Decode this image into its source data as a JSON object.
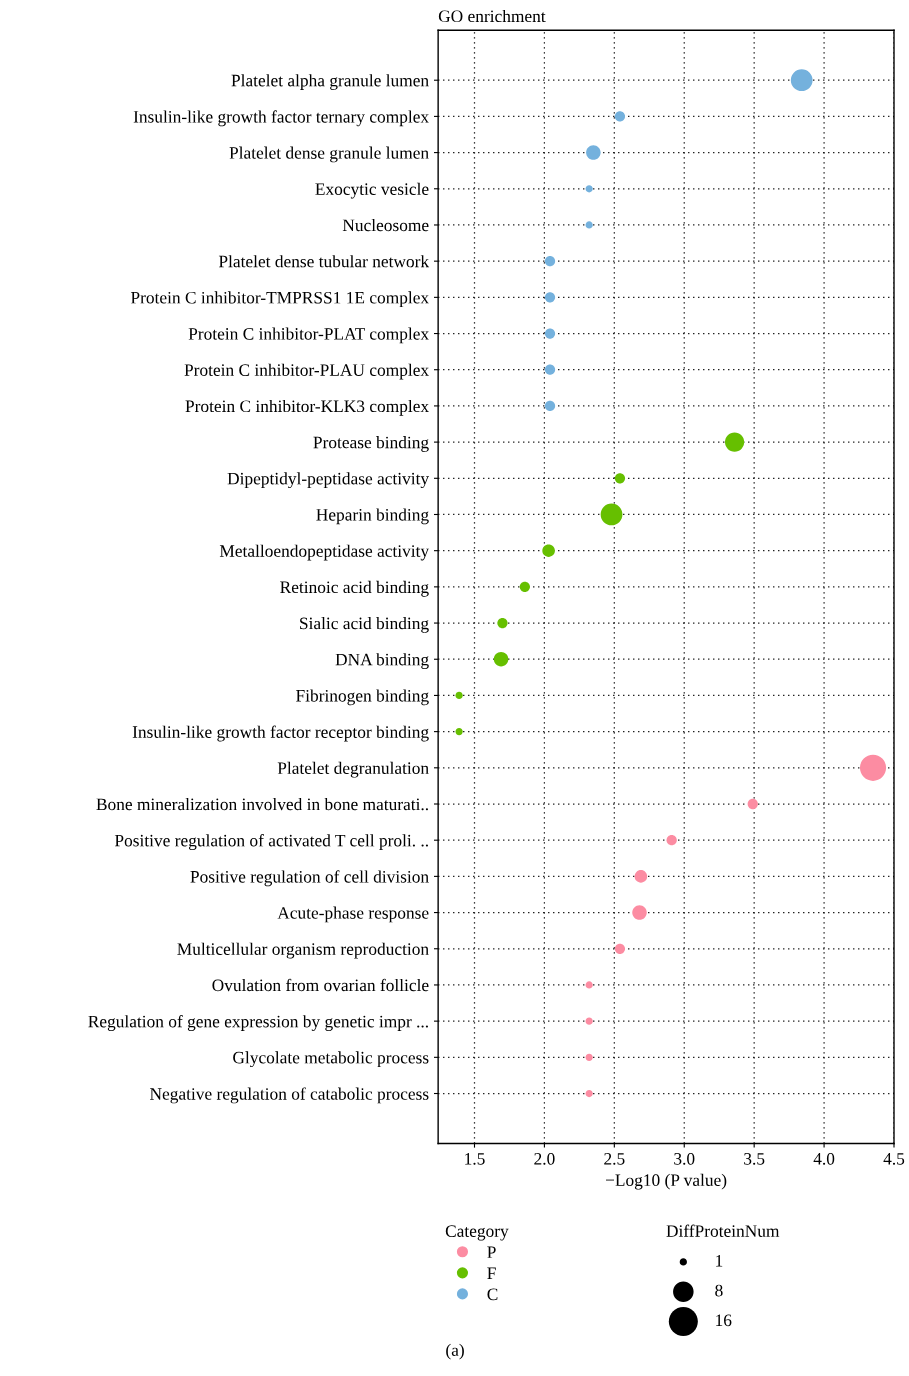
{
  "chart_data": {
    "type": "bubble",
    "title": "GO enrichment",
    "xlabel": "−Log10 (P value)",
    "orientation": "horizontal",
    "categories": [
      "Platelet alpha granule lumen",
      "Insulin-like growth factor ternary complex",
      "Platelet dense granule lumen",
      "Exocytic vesicle",
      "Nucleosome",
      "Platelet dense tubular network",
      "Protein C inhibitor-TMPRSS1 1E complex",
      "Protein C inhibitor-PLAT complex",
      "Protein C inhibitor-PLAU complex",
      "Protein C inhibitor-KLK3 complex",
      "Protease binding",
      "Dipeptidyl-peptidase activity",
      "Heparin binding",
      "Metalloendopeptidase activity",
      "Retinoic acid binding",
      "Sialic acid binding",
      "DNA binding",
      "Fibrinogen binding",
      "Insulin-like growth factor receptor binding",
      "Platelet degranulation",
      "Bone mineralization involved in bone maturati..",
      "Positive regulation of activated T cell proli. ..",
      "Positive regulation of cell division",
      "Acute-phase response",
      "Multicellular organism reproduction",
      "Ovulation from ovarian follicle",
      "Regulation of gene expression by genetic impr ...",
      "Glycolate metabolic process",
      "Negative regulation of catabolic process"
    ],
    "series": [
      {
        "name": "P",
        "color": "#fc8ca2",
        "values": [
          null,
          null,
          null,
          null,
          null,
          null,
          null,
          null,
          null,
          null,
          null,
          null,
          null,
          null,
          null,
          null,
          null,
          null,
          null,
          4.35,
          3.49,
          2.91,
          2.69,
          2.68,
          2.54,
          2.32,
          2.32,
          2.32,
          2.32
        ],
        "sizes": [
          null,
          null,
          null,
          null,
          null,
          null,
          null,
          null,
          null,
          null,
          null,
          null,
          null,
          null,
          null,
          null,
          null,
          null,
          null,
          13,
          2,
          2,
          3,
          4,
          2,
          1,
          1,
          1,
          1
        ]
      },
      {
        "name": "F",
        "color": "#66bf00",
        "values": [
          null,
          null,
          null,
          null,
          null,
          null,
          null,
          null,
          null,
          null,
          3.36,
          2.54,
          2.48,
          2.03,
          1.86,
          1.7,
          1.69,
          1.39,
          1.39,
          null,
          null,
          null,
          null,
          null,
          null,
          null,
          null,
          null,
          null
        ],
        "sizes": [
          null,
          null,
          null,
          null,
          null,
          null,
          null,
          null,
          null,
          null,
          7,
          2,
          9,
          3,
          2,
          2,
          4,
          1,
          1,
          null,
          null,
          null,
          null,
          null,
          null,
          null,
          null,
          null,
          null
        ]
      },
      {
        "name": "C",
        "color": "#74b1dd",
        "values": [
          3.84,
          2.54,
          2.35,
          2.32,
          2.32,
          2.04,
          2.04,
          2.04,
          2.04,
          2.04,
          null,
          null,
          null,
          null,
          null,
          null,
          null,
          null,
          null,
          null,
          null,
          null,
          null,
          null,
          null,
          null,
          null,
          null,
          null
        ],
        "sizes": [
          9,
          2,
          4,
          1,
          1,
          2,
          2,
          2,
          2,
          2,
          null,
          null,
          null,
          null,
          null,
          null,
          null,
          null,
          null,
          null,
          null,
          null,
          null,
          null,
          null,
          null,
          null,
          null,
          null
        ]
      }
    ],
    "size_legend": [
      1,
      8,
      16
    ],
    "legend_title": "Category",
    "annotations": [
      "DiffProteinNum",
      "(a)"
    ],
    "xlim": [
      1.24,
      4.5
    ],
    "xticks": [
      {
        "value": 1.5,
        "label": "1.5"
      },
      {
        "value": 2.0,
        "label": "2.0"
      },
      {
        "value": 2.5,
        "label": "2.5"
      },
      {
        "value": 3.0,
        "label": "3.0"
      },
      {
        "value": 3.5,
        "label": "3.5"
      },
      {
        "value": 4.0,
        "label": "4.0"
      },
      {
        "value": 4.5,
        "label": "4.5"
      }
    ],
    "grid": true,
    "legend": "bottom"
  }
}
